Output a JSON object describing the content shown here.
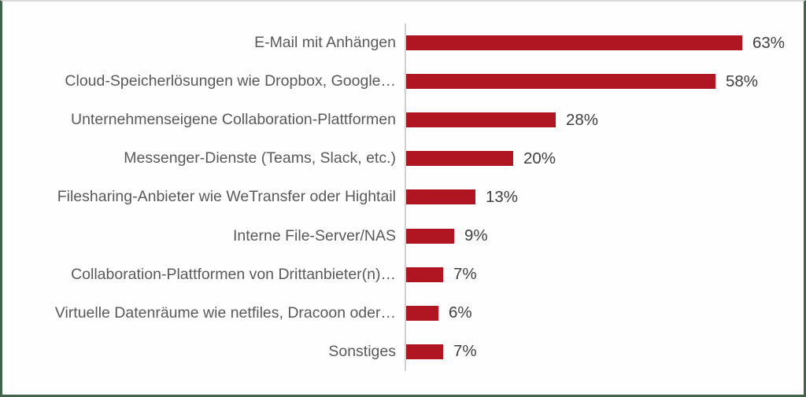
{
  "chart_data": {
    "type": "bar",
    "orientation": "horizontal",
    "title": "",
    "xlabel": "",
    "ylabel": "",
    "xlim": [
      0,
      70
    ],
    "grid": false,
    "legend": false,
    "value_suffix": "%",
    "categories": [
      "E-Mail mit Anhängen",
      "Cloud-Speicherlösungen wie Dropbox, Google…",
      "Unternehmenseigene Collaboration-Plattformen",
      "Messenger-Dienste (Teams, Slack, etc.)",
      "Filesharing-Anbieter wie WeTransfer oder Hightail",
      "Interne File-Server/NAS",
      "Collaboration-Plattformen von Drittanbieter(n)…",
      "Virtuelle Datenräume wie netfiles, Dracoon oder…",
      "Sonstiges"
    ],
    "values": [
      63,
      58,
      28,
      20,
      13,
      9,
      7,
      6,
      7
    ],
    "value_labels": [
      "63%",
      "58%",
      "28%",
      "20%",
      "13%",
      "9%",
      "7%",
      "6%",
      "7%"
    ],
    "colors": {
      "bar": "#b01622",
      "category_label": "#595959",
      "value_label": "#404040",
      "axis_line": "#d0d0d0",
      "frame_border": "#41634c",
      "frame_top_border": "#d8d8d8",
      "background": "#fefefe"
    }
  }
}
